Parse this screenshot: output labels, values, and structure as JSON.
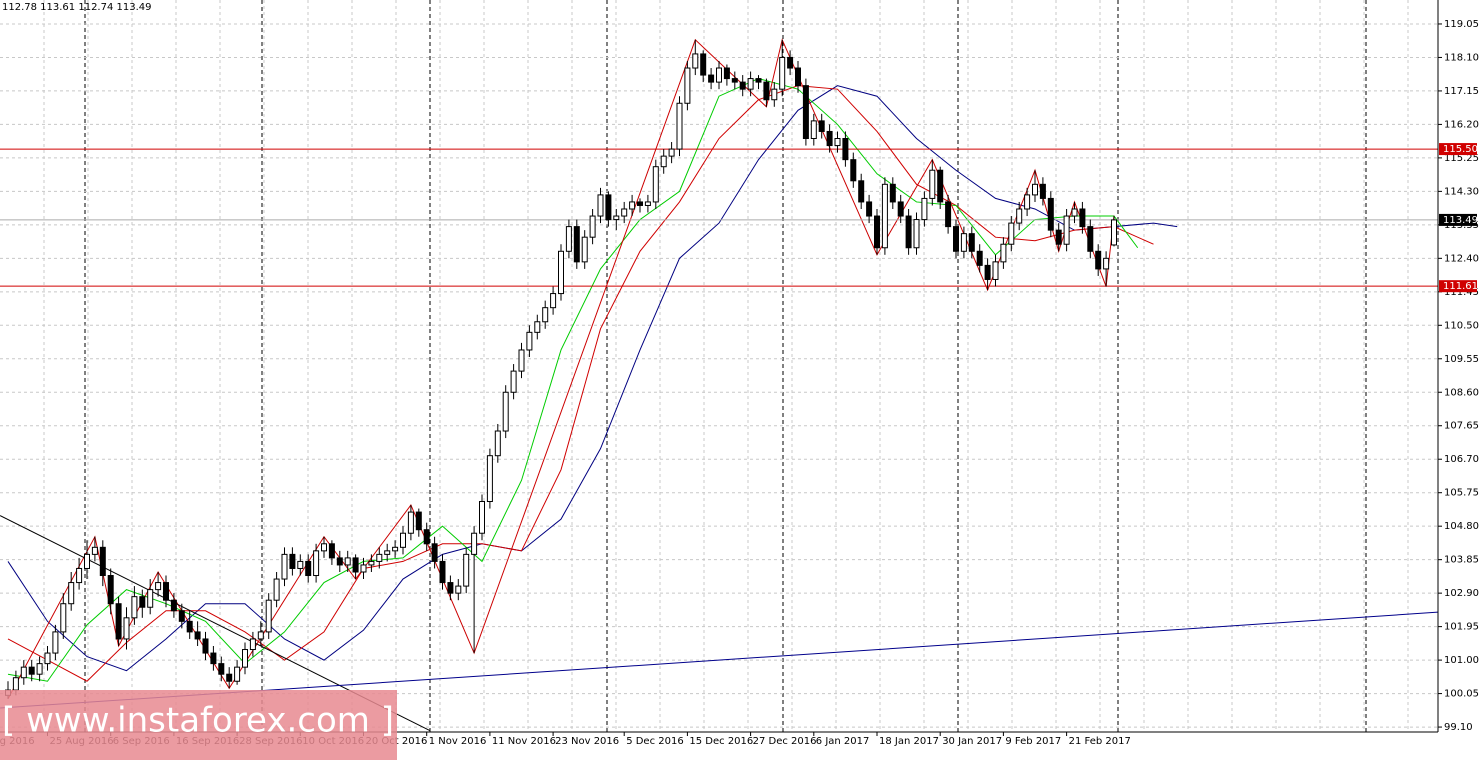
{
  "chart_data": {
    "type": "candlestick",
    "header": "112.78 113.61 112.74 113.49",
    "ylim": [
      98.96,
      119.73
    ],
    "yticks": [
      {
        "value": 99.1,
        "label": "99.10"
      },
      {
        "value": 100.05,
        "label": "100.05"
      },
      {
        "value": 101,
        "label": "101.00"
      },
      {
        "value": 101.95,
        "label": "101.95"
      },
      {
        "value": 102.9,
        "label": "102.90"
      },
      {
        "value": 103.85,
        "label": "103.85"
      },
      {
        "value": 104.8,
        "label": "104.80"
      },
      {
        "value": 105.75,
        "label": "105.75"
      },
      {
        "value": 106.7,
        "label": "106.70"
      },
      {
        "value": 107.65,
        "label": "107.65"
      },
      {
        "value": 108.6,
        "label": "108.60"
      },
      {
        "value": 109.55,
        "label": "109.55"
      },
      {
        "value": 110.5,
        "label": "110.50"
      },
      {
        "value": 111.45,
        "label": "111.45"
      },
      {
        "value": 112.4,
        "label": "112.40"
      },
      {
        "value": 113.35,
        "label": "113.35"
      },
      {
        "value": 114.3,
        "label": "114.30"
      },
      {
        "value": 115.25,
        "label": "115.25"
      },
      {
        "value": 116.2,
        "label": "116.20"
      },
      {
        "value": 117.15,
        "label": "117.15"
      },
      {
        "value": 118.1,
        "label": "118.10"
      },
      {
        "value": 119.05,
        "label": "119.05"
      }
    ],
    "xticks": [
      {
        "value": -5,
        "label": "15 Aug 2016"
      },
      {
        "value": 5,
        "label": "25 Aug 2016"
      },
      {
        "value": 13,
        "label": "6 Sep 2016"
      },
      {
        "value": 21,
        "label": "16 Sep 2016"
      },
      {
        "value": 29,
        "label": "28 Sep 2016"
      },
      {
        "value": 37,
        "label": "10 Oct 2016"
      },
      {
        "value": 45,
        "label": "20 Oct 2016"
      },
      {
        "value": 53,
        "label": "1 Nov 2016"
      },
      {
        "value": 61,
        "label": "11 Nov 2016"
      },
      {
        "value": 69,
        "label": "23 Nov 2016"
      },
      {
        "value": 78,
        "label": "5 Dec 2016"
      },
      {
        "value": 86,
        "label": "15 Dec 2016"
      },
      {
        "value": 94,
        "label": "27 Dec 2016"
      },
      {
        "value": 102,
        "label": "6 Jan 2017"
      },
      {
        "value": 110,
        "label": "18 Jan 2017"
      },
      {
        "value": 118,
        "label": "30 Jan 2017"
      },
      {
        "value": 126,
        "label": "9 Feb 2017"
      },
      {
        "value": 134,
        "label": "21 Feb 2017"
      }
    ],
    "levels": [
      {
        "value": 115.5,
        "label": "115.50",
        "color": "#d00000"
      },
      111.61
    ],
    "level_color": "#d00000",
    "last_price": 113.49,
    "candles": [
      [
        100.0,
        100.4,
        99.9,
        100.15
      ],
      [
        100.15,
        100.7,
        100.0,
        100.5
      ],
      [
        100.5,
        101.0,
        100.3,
        100.8
      ],
      [
        100.8,
        101.0,
        100.4,
        100.6
      ],
      [
        100.6,
        101.1,
        100.4,
        100.9
      ],
      [
        100.9,
        101.4,
        100.7,
        101.2
      ],
      [
        101.2,
        102.0,
        101.0,
        101.8
      ],
      [
        101.8,
        102.9,
        101.6,
        102.6
      ],
      [
        102.6,
        103.5,
        102.4,
        103.2
      ],
      [
        103.2,
        103.9,
        103.0,
        103.6
      ],
      [
        103.6,
        104.4,
        103.3,
        104.0
      ],
      [
        104.0,
        104.5,
        103.8,
        104.2
      ],
      [
        104.2,
        104.4,
        103.1,
        103.4
      ],
      [
        103.4,
        103.6,
        102.3,
        102.6
      ],
      [
        102.6,
        102.8,
        101.4,
        101.6
      ],
      [
        101.6,
        102.5,
        101.3,
        102.2
      ],
      [
        102.2,
        103.1,
        102.0,
        102.8
      ],
      [
        102.8,
        103.0,
        102.2,
        102.5
      ],
      [
        102.5,
        103.3,
        102.3,
        103.0
      ],
      [
        103.0,
        103.5,
        102.8,
        103.2
      ],
      [
        103.2,
        103.4,
        102.5,
        102.7
      ],
      [
        102.7,
        102.9,
        102.2,
        102.4
      ],
      [
        102.4,
        102.6,
        101.9,
        102.1
      ],
      [
        102.1,
        102.4,
        101.6,
        101.8
      ],
      [
        101.8,
        102.1,
        101.4,
        101.6
      ],
      [
        101.6,
        101.8,
        101.0,
        101.2
      ],
      [
        101.2,
        101.4,
        100.7,
        100.9
      ],
      [
        100.9,
        101.1,
        100.4,
        100.6
      ],
      [
        100.6,
        100.8,
        100.2,
        100.4
      ],
      [
        100.4,
        101.0,
        100.3,
        100.8
      ],
      [
        100.8,
        101.5,
        100.6,
        101.3
      ],
      [
        101.3,
        101.8,
        101.1,
        101.6
      ],
      [
        101.6,
        102.1,
        101.4,
        101.8
      ],
      [
        101.8,
        102.9,
        101.6,
        102.7
      ],
      [
        102.7,
        103.5,
        102.5,
        103.3
      ],
      [
        103.3,
        104.2,
        103.1,
        104.0
      ],
      [
        104.0,
        104.2,
        103.4,
        103.6
      ],
      [
        103.6,
        104.0,
        103.4,
        103.8
      ],
      [
        103.8,
        104.0,
        103.2,
        103.4
      ],
      [
        103.4,
        104.3,
        103.2,
        104.1
      ],
      [
        104.1,
        104.5,
        103.9,
        104.3
      ],
      [
        104.3,
        104.4,
        103.7,
        103.9
      ],
      [
        103.9,
        104.1,
        103.5,
        103.7
      ],
      [
        103.7,
        104.1,
        103.5,
        103.9
      ],
      [
        103.9,
        104.0,
        103.3,
        103.5
      ],
      [
        103.5,
        103.9,
        103.3,
        103.7
      ],
      [
        103.7,
        104.0,
        103.5,
        103.8
      ],
      [
        103.8,
        104.2,
        103.6,
        104.0
      ],
      [
        104.0,
        104.3,
        103.8,
        104.1
      ],
      [
        104.1,
        104.4,
        103.9,
        104.2
      ],
      [
        104.2,
        104.8,
        104.0,
        104.6
      ],
      [
        104.6,
        105.4,
        104.4,
        105.2
      ],
      [
        105.2,
        105.3,
        104.5,
        104.7
      ],
      [
        104.7,
        104.9,
        104.1,
        104.3
      ],
      [
        104.3,
        104.5,
        103.6,
        103.8
      ],
      [
        103.8,
        104.0,
        103.0,
        103.2
      ],
      [
        103.2,
        103.4,
        102.7,
        102.9
      ],
      [
        102.9,
        103.3,
        102.7,
        103.1
      ],
      [
        103.1,
        104.2,
        102.9,
        104.0
      ],
      [
        104.0,
        104.8,
        101.2,
        104.6
      ],
      [
        104.6,
        105.7,
        104.4,
        105.5
      ],
      [
        105.5,
        107.0,
        105.3,
        106.8
      ],
      [
        106.8,
        107.7,
        106.6,
        107.5
      ],
      [
        107.5,
        108.8,
        107.3,
        108.6
      ],
      [
        108.6,
        109.4,
        108.4,
        109.2
      ],
      [
        109.2,
        110.0,
        109.0,
        109.8
      ],
      [
        109.8,
        110.5,
        109.6,
        110.3
      ],
      [
        110.3,
        110.8,
        110.1,
        110.6
      ],
      [
        110.6,
        111.2,
        110.4,
        111.0
      ],
      [
        111.0,
        111.6,
        110.8,
        111.4
      ],
      [
        111.4,
        112.8,
        111.2,
        112.6
      ],
      [
        112.6,
        113.5,
        112.4,
        113.3
      ],
      [
        113.3,
        113.5,
        112.1,
        112.3
      ],
      [
        112.3,
        113.2,
        112.1,
        113.0
      ],
      [
        113.0,
        113.8,
        112.8,
        113.6
      ],
      [
        113.6,
        114.4,
        113.4,
        114.2
      ],
      [
        114.2,
        114.3,
        113.3,
        113.5
      ],
      [
        113.5,
        113.8,
        113.2,
        113.6
      ],
      [
        113.6,
        114.0,
        113.4,
        113.8
      ],
      [
        113.8,
        114.2,
        113.6,
        114.0
      ],
      [
        114.0,
        114.1,
        113.7,
        113.9
      ],
      [
        113.9,
        114.2,
        113.7,
        114.0
      ],
      [
        114.0,
        115.2,
        113.8,
        115.0
      ],
      [
        115.0,
        115.5,
        114.8,
        115.3
      ],
      [
        115.3,
        115.7,
        115.1,
        115.5
      ],
      [
        115.5,
        117.0,
        115.3,
        116.8
      ],
      [
        116.8,
        118.0,
        116.6,
        117.8
      ],
      [
        117.8,
        118.6,
        117.6,
        118.2
      ],
      [
        118.2,
        118.3,
        117.4,
        117.6
      ],
      [
        117.6,
        117.8,
        117.2,
        117.4
      ],
      [
        117.4,
        118.0,
        117.2,
        117.8
      ],
      [
        117.8,
        117.9,
        117.3,
        117.5
      ],
      [
        117.5,
        117.7,
        117.2,
        117.4
      ],
      [
        117.4,
        117.6,
        117.0,
        117.2
      ],
      [
        117.2,
        117.7,
        117.0,
        117.5
      ],
      [
        117.5,
        117.6,
        117.2,
        117.4
      ],
      [
        117.4,
        117.5,
        116.7,
        116.9
      ],
      [
        116.9,
        117.4,
        116.7,
        117.2
      ],
      [
        117.2,
        118.6,
        117.0,
        118.1
      ],
      [
        118.1,
        118.3,
        117.6,
        117.8
      ],
      [
        117.8,
        118.0,
        117.1,
        117.3
      ],
      [
        117.3,
        117.5,
        115.6,
        115.8
      ],
      [
        115.8,
        116.5,
        115.6,
        116.3
      ],
      [
        116.3,
        116.5,
        115.8,
        116.0
      ],
      [
        116.0,
        116.2,
        115.4,
        115.6
      ],
      [
        115.6,
        116.0,
        115.4,
        115.8
      ],
      [
        115.8,
        116.0,
        115.0,
        115.2
      ],
      [
        115.2,
        115.4,
        114.4,
        114.6
      ],
      [
        114.6,
        114.8,
        113.8,
        114.0
      ],
      [
        114.0,
        114.2,
        113.4,
        113.6
      ],
      [
        113.6,
        113.8,
        112.5,
        112.7
      ],
      [
        112.7,
        114.7,
        112.5,
        114.5
      ],
      [
        114.5,
        114.7,
        113.8,
        114.0
      ],
      [
        114.0,
        114.2,
        113.4,
        113.6
      ],
      [
        113.6,
        113.8,
        112.5,
        112.7
      ],
      [
        112.7,
        113.7,
        112.5,
        113.5
      ],
      [
        113.5,
        114.3,
        113.3,
        114.1
      ],
      [
        114.1,
        115.2,
        113.9,
        114.9
      ],
      [
        114.9,
        115.0,
        113.8,
        114.0
      ],
      [
        114.0,
        114.2,
        113.1,
        113.3
      ],
      [
        113.3,
        113.5,
        112.4,
        112.6
      ],
      [
        112.6,
        113.3,
        112.4,
        113.1
      ],
      [
        113.1,
        113.3,
        112.4,
        112.6
      ],
      [
        112.6,
        112.8,
        112.0,
        112.2
      ],
      [
        112.2,
        112.4,
        111.5,
        111.8
      ],
      [
        111.8,
        112.5,
        111.6,
        112.3
      ],
      [
        112.3,
        113.0,
        112.1,
        112.8
      ],
      [
        112.8,
        113.6,
        112.6,
        113.4
      ],
      [
        113.4,
        114.0,
        113.2,
        113.8
      ],
      [
        113.8,
        114.4,
        113.6,
        114.2
      ],
      [
        114.2,
        114.9,
        114.0,
        114.5
      ],
      [
        114.5,
        114.7,
        113.9,
        114.1
      ],
      [
        114.1,
        114.3,
        113.0,
        113.2
      ],
      [
        113.2,
        113.4,
        112.6,
        112.8
      ],
      [
        112.8,
        113.8,
        112.6,
        113.6
      ],
      [
        113.6,
        114.0,
        113.4,
        113.8
      ],
      [
        113.8,
        114.0,
        113.1,
        113.3
      ],
      [
        113.3,
        113.5,
        112.4,
        112.6
      ],
      [
        112.6,
        112.8,
        111.9,
        112.1
      ],
      [
        112.1,
        112.6,
        111.6,
        112.4
      ],
      [
        112.78,
        113.61,
        112.74,
        113.49
      ]
    ],
    "series": [
      {
        "color": "#000080",
        "x": [
          0,
          5,
          10,
          15,
          20,
          25,
          30,
          35,
          40,
          45,
          50,
          55,
          60,
          65,
          70,
          75,
          80,
          85,
          90,
          95,
          100,
          105,
          110,
          115,
          120,
          125,
          130,
          135,
          140,
          145,
          148
        ],
        "values": [
          103.8,
          102.1,
          101.1,
          100.7,
          101.6,
          102.6,
          102.6,
          101.6,
          101.0,
          101.85,
          103.3,
          104.0,
          104.3,
          104.1,
          105.0,
          107.0,
          109.8,
          112.4,
          113.4,
          115.2,
          116.6,
          117.3,
          117.0,
          115.8,
          114.9,
          114.1,
          113.8,
          113.2,
          113.3,
          113.4,
          113.3
        ]
      },
      {
        "color": "#d00000",
        "x": [
          0,
          5,
          10,
          15,
          20,
          25,
          30,
          35,
          40,
          45,
          50,
          55,
          60,
          65,
          70,
          75,
          80,
          85,
          90,
          95,
          100,
          105,
          110,
          115,
          120,
          125,
          130,
          135,
          140,
          145
        ],
        "values": [
          101.6,
          101.0,
          100.4,
          101.5,
          102.4,
          102.4,
          101.8,
          101.0,
          101.8,
          103.6,
          103.8,
          104.3,
          104.3,
          104.1,
          106.4,
          110.4,
          112.6,
          114.0,
          115.8,
          116.9,
          117.3,
          117.2,
          116.0,
          114.5,
          113.9,
          113.0,
          112.9,
          113.2,
          113.3,
          112.8
        ]
      },
      {
        "color": "#00cc00",
        "x": [
          0,
          5,
          10,
          15,
          20,
          25,
          30,
          35,
          40,
          45,
          50,
          55,
          60,
          65,
          70,
          75,
          80,
          85,
          90,
          95,
          100,
          105,
          110,
          115,
          120,
          125,
          130,
          135,
          140,
          143
        ],
        "values": [
          100.6,
          100.4,
          102.0,
          103.0,
          102.6,
          102.1,
          100.9,
          101.8,
          103.2,
          103.8,
          103.9,
          104.8,
          103.8,
          106.1,
          109.8,
          112.1,
          113.5,
          114.3,
          117.0,
          117.5,
          117.2,
          116.2,
          114.8,
          114.0,
          113.9,
          112.5,
          113.5,
          113.6,
          113.6,
          112.7
        ]
      },
      {
        "color": "#cc0000",
        "x": [
          0,
          11,
          14,
          19,
          28,
          40,
          44,
          51,
          59,
          87,
          96,
          98,
          110,
          117,
          124,
          130,
          133,
          135,
          139,
          140
        ],
        "values": [
          99.9,
          104.5,
          101.4,
          103.5,
          100.2,
          104.5,
          103.3,
          105.4,
          101.2,
          118.6,
          116.7,
          118.6,
          112.5,
          115.2,
          111.5,
          114.9,
          112.6,
          114.0,
          111.6,
          113.61
        ]
      },
      {
        "color": "#000000",
        "x": [
          -1,
          53.4
        ],
        "values": [
          105.1,
          99.0
        ]
      },
      {
        "color": "#00008b",
        "x": [
          -1,
          181
        ],
        "values": [
          99.64,
          102.36
        ]
      }
    ]
  },
  "watermark": "[ www.instaforex.com ]"
}
